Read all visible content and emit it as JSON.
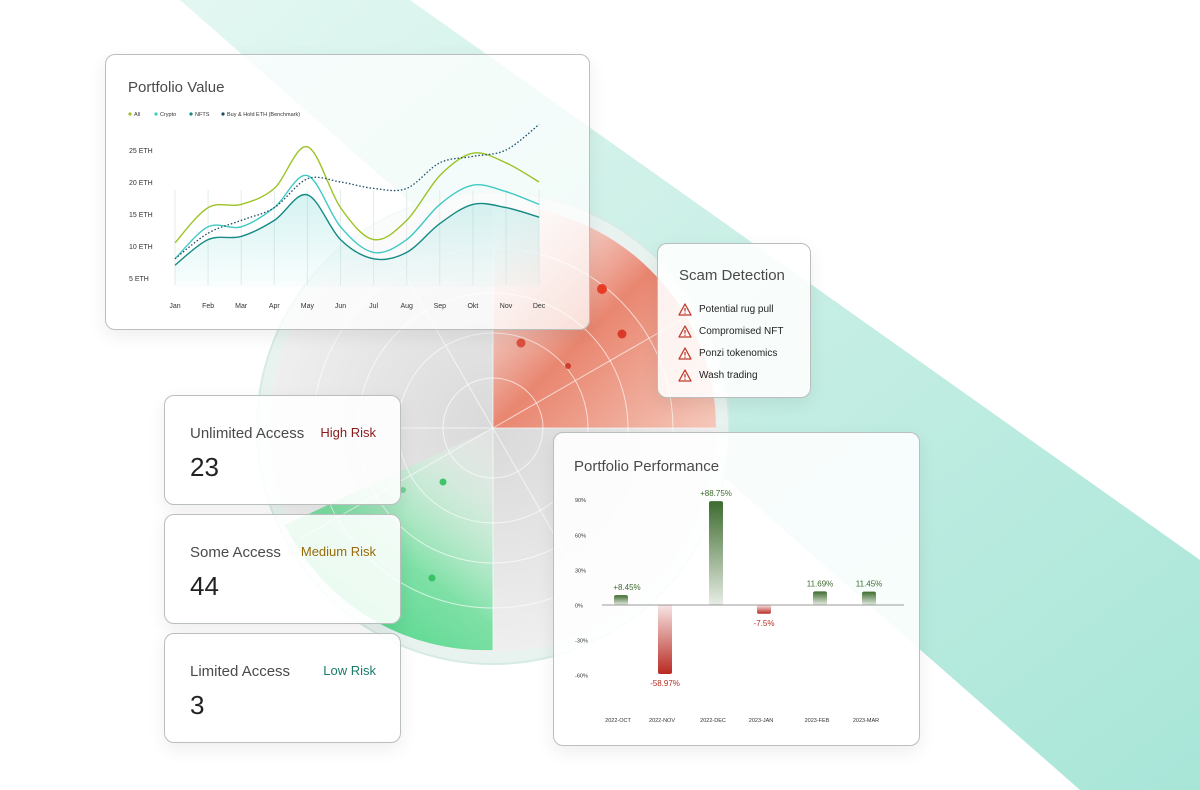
{
  "colors": {
    "teal_band": "#c9efe6",
    "radar_red": "#e7836d",
    "radar_green": "#4fd68a",
    "high": "#8b1a1a",
    "medium": "#9a6a0a",
    "low": "#1b7a6a",
    "bar_pos": "#3d6b2e",
    "bar_neg": "#b92a22",
    "warn": "#c0392b"
  },
  "portfolio_value": {
    "title": "Portfolio Value",
    "chart_data": {
      "type": "line",
      "x": [
        "Jan",
        "Feb",
        "Mar",
        "Apr",
        "May",
        "Jun",
        "Jul",
        "Aug",
        "Sep",
        "Okt",
        "Nov",
        "Dec"
      ],
      "y_ticks": [
        "25 ETH",
        "20 ETH",
        "15 ETH",
        "10 ETH",
        "5 ETH"
      ],
      "ylim": [
        5,
        25
      ],
      "legend_position": "top-left",
      "series": [
        {
          "name": "All",
          "color": "#9cc325",
          "style": "solid",
          "values": [
            10.5,
            16,
            16.5,
            19,
            25.5,
            16,
            11,
            14,
            21,
            24.5,
            23,
            20
          ]
        },
        {
          "name": "Crypto",
          "color": "#3fc9c4",
          "style": "solid",
          "values": [
            8,
            13,
            13,
            16,
            21,
            13,
            9,
            11,
            16.5,
            19.5,
            18.5,
            16.5
          ]
        },
        {
          "name": "NFTS",
          "color": "#168a84",
          "style": "solid",
          "values": [
            7,
            11,
            11.5,
            14,
            18,
            11,
            8,
            9,
            13.5,
            16.5,
            16,
            14.5
          ]
        },
        {
          "name": "Buy & Hold ETH (Benchmark)",
          "color": "#1a4a66",
          "style": "dotted",
          "values": [
            8,
            12,
            14,
            16,
            20.5,
            20,
            19,
            19,
            23,
            24,
            25,
            29
          ]
        }
      ]
    }
  },
  "scam_detection": {
    "title": "Scam Detection",
    "items": [
      "Potential rug pull",
      "Compromised NFT",
      "Ponzi tokenomics",
      "Wash trading"
    ]
  },
  "risk_cards": [
    {
      "label": "Unlimited Access",
      "level": "High Risk",
      "count": "23"
    },
    {
      "label": "Some Access",
      "level": "Medium Risk",
      "count": "44"
    },
    {
      "label": "Limited Access",
      "level": "Low Risk",
      "count": "3"
    }
  ],
  "portfolio_performance": {
    "title": "Portfolio Performance",
    "chart_data": {
      "type": "bar",
      "categories": [
        "2022-OCT",
        "2022-NOV",
        "2022-DEC",
        "2023-JAN",
        "2023-FEB",
        "2023-MAR"
      ],
      "values": [
        8.45,
        -58.97,
        88.75,
        -7.5,
        11.69,
        11.45
      ],
      "data_labels": [
        "+8.45%",
        "-58.97%",
        "+88.75%",
        "-7.5%",
        "11.69%",
        "11.45%"
      ],
      "y_ticks": [
        "90%",
        "60%",
        "30%",
        "0%",
        "-30%",
        "-60%"
      ],
      "ylim": [
        -60,
        90
      ]
    }
  }
}
